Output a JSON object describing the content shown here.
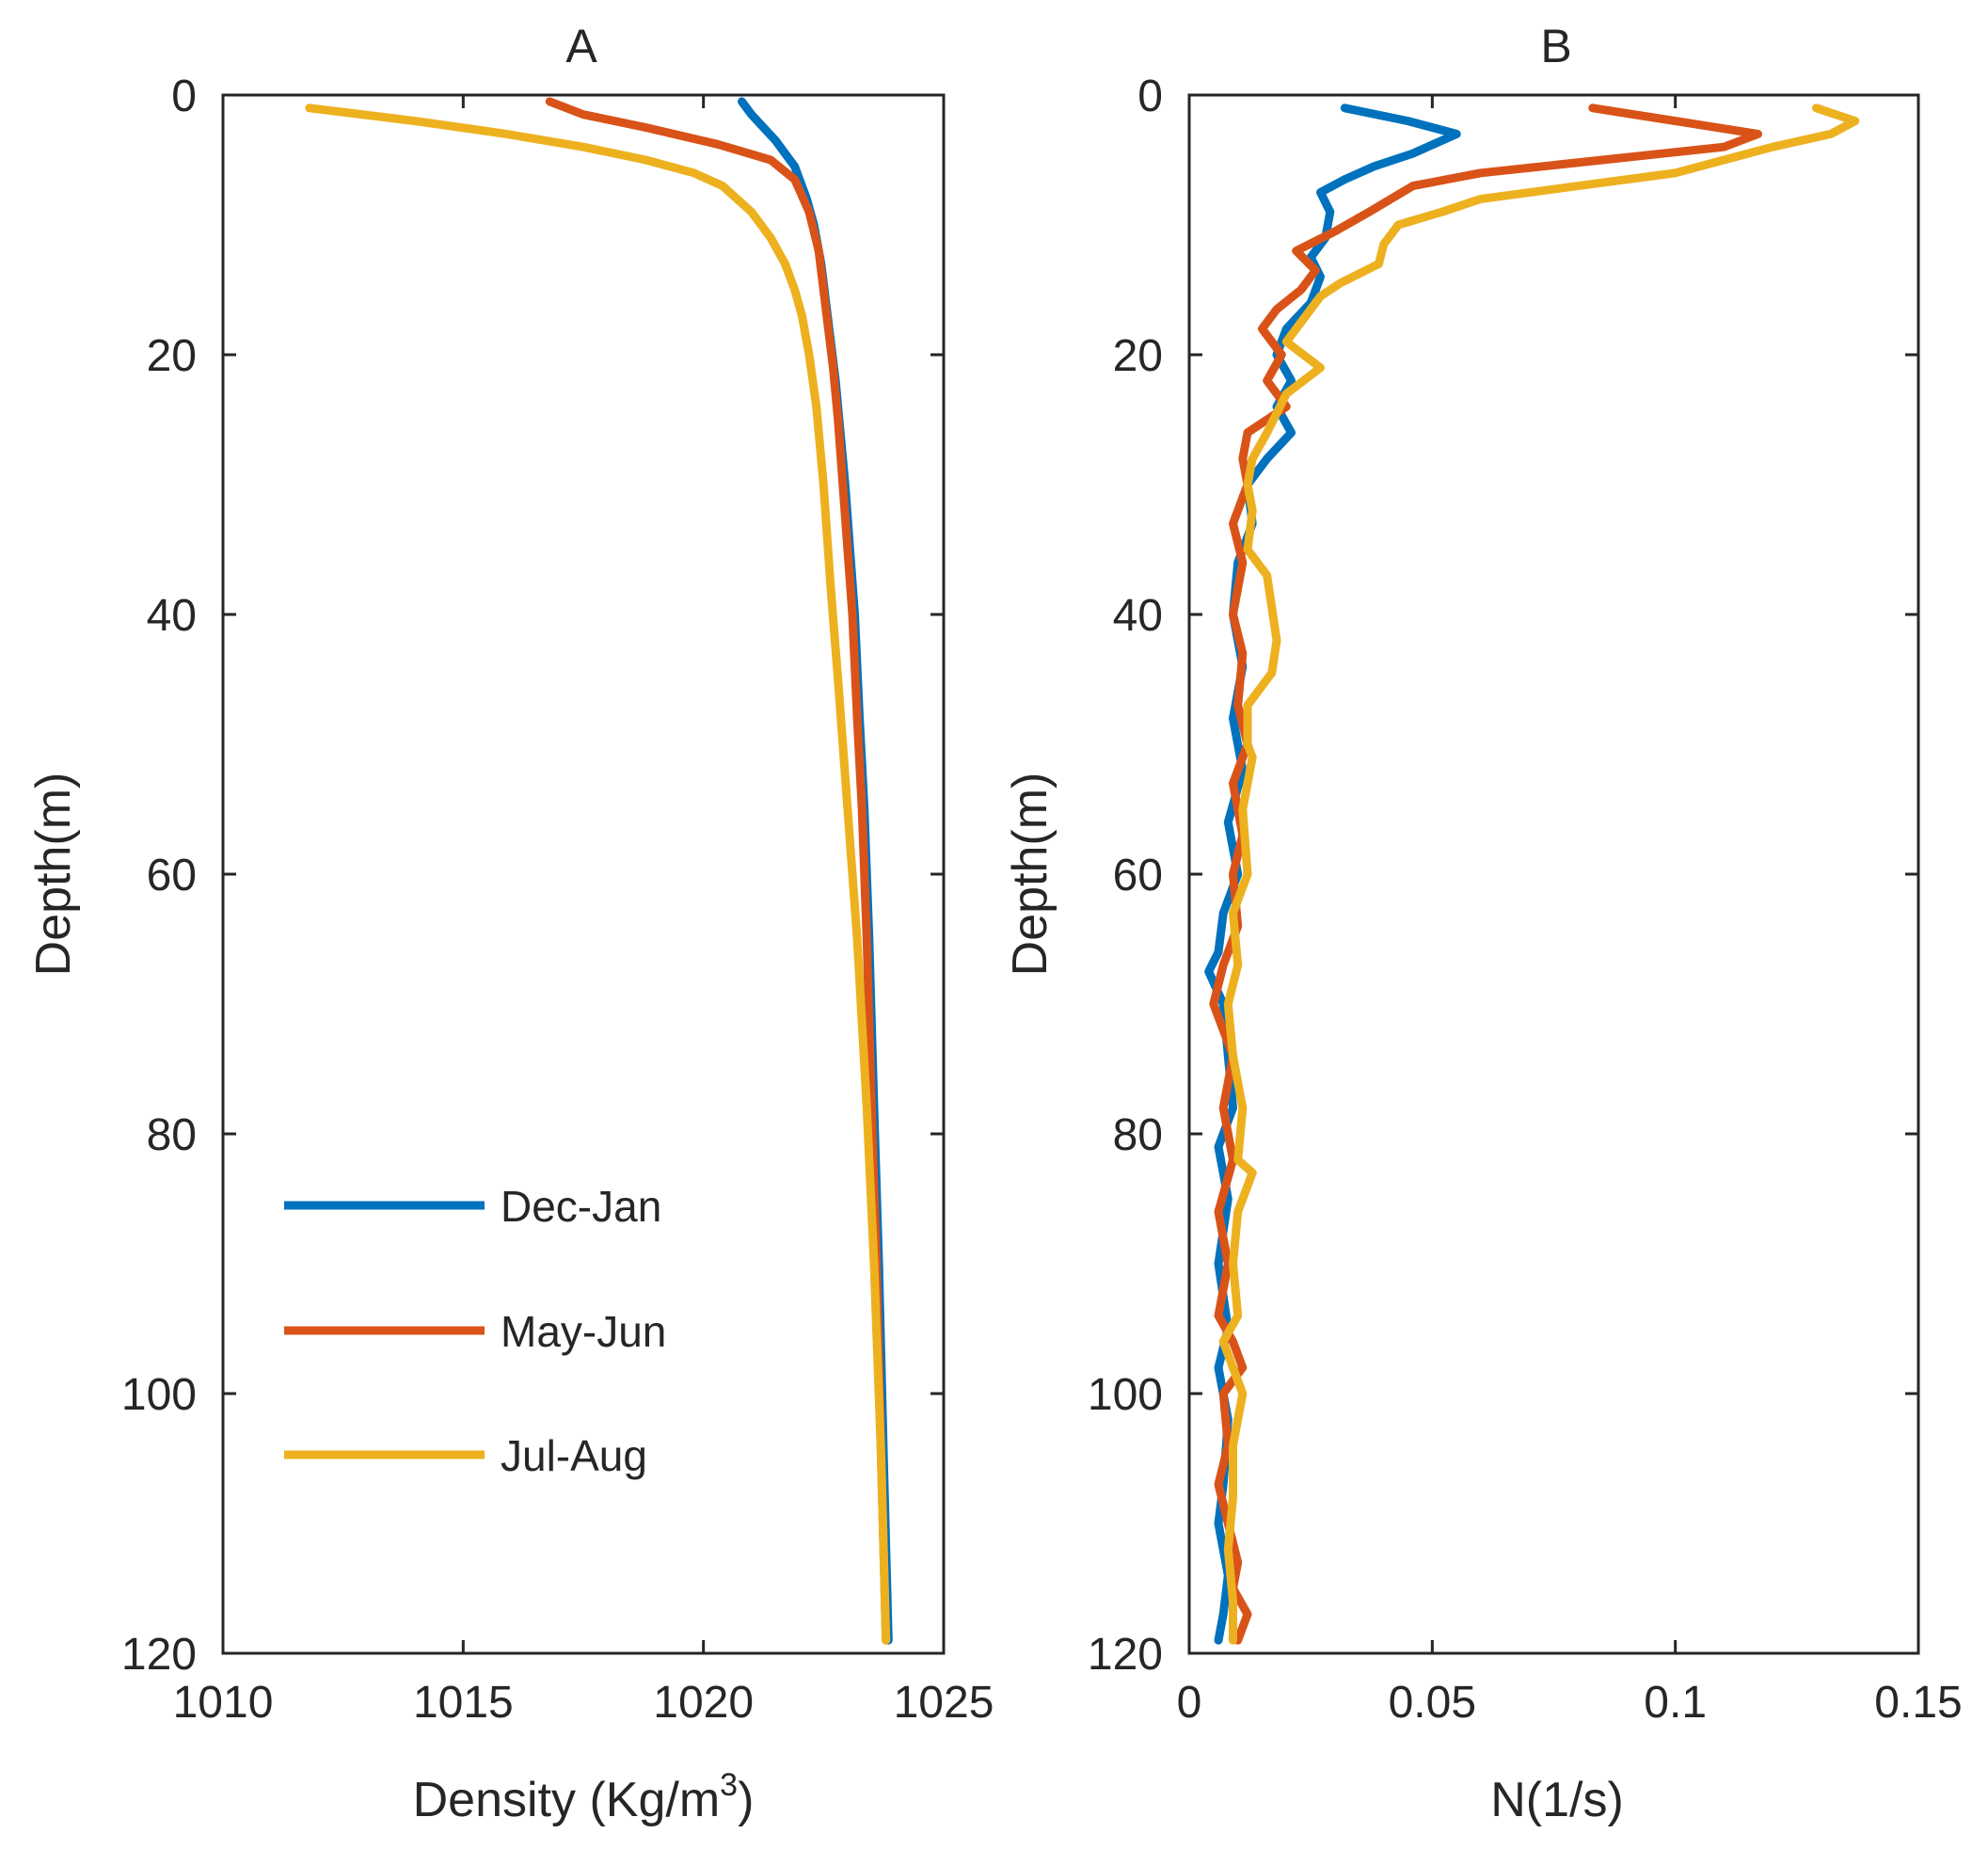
{
  "chart_data": [
    {
      "type": "line",
      "panel": "A",
      "title": "A",
      "xlabel": "Density (Kg/m",
      "xlabel_sup": "3",
      "xlabel_close": ")",
      "ylabel": "Depth(m)",
      "xlim": [
        1010,
        1025
      ],
      "ylim": [
        0,
        120
      ],
      "y_reversed": true,
      "xticks": [
        1010,
        1015,
        1020,
        1025
      ],
      "yticks": [
        0,
        20,
        40,
        60,
        80,
        100,
        120
      ],
      "legend": {
        "position": "bottom-left"
      },
      "series": [
        {
          "name": "Dec-Jan",
          "color": "#0072BD",
          "points": [
            [
              1020.8,
              0.5
            ],
            [
              1021.0,
              1.5
            ],
            [
              1021.5,
              3.5
            ],
            [
              1021.9,
              5.5
            ],
            [
              1022.15,
              8
            ],
            [
              1022.3,
              10
            ],
            [
              1022.45,
              13
            ],
            [
              1022.55,
              16
            ],
            [
              1022.65,
              19
            ],
            [
              1022.75,
              22
            ],
            [
              1022.85,
              26
            ],
            [
              1022.95,
              30
            ],
            [
              1023.05,
              35
            ],
            [
              1023.15,
              40
            ],
            [
              1023.25,
              48
            ],
            [
              1023.35,
              55
            ],
            [
              1023.45,
              65
            ],
            [
              1023.55,
              78
            ],
            [
              1023.65,
              90
            ],
            [
              1023.75,
              105
            ],
            [
              1023.85,
              119
            ]
          ]
        },
        {
          "name": "May-Jun",
          "color": "#D95319",
          "points": [
            [
              1016.8,
              0.5
            ],
            [
              1017.5,
              1.5
            ],
            [
              1018.8,
              2.5
            ],
            [
              1020.3,
              3.8
            ],
            [
              1021.4,
              5
            ],
            [
              1021.9,
              6.5
            ],
            [
              1022.2,
              9
            ],
            [
              1022.4,
              12
            ],
            [
              1022.5,
              15
            ],
            [
              1022.6,
              18
            ],
            [
              1022.7,
              21
            ],
            [
              1022.8,
              25
            ],
            [
              1022.9,
              30
            ],
            [
              1023.0,
              35
            ],
            [
              1023.1,
              40
            ],
            [
              1023.2,
              48
            ],
            [
              1023.3,
              55
            ],
            [
              1023.4,
              65
            ],
            [
              1023.5,
              78
            ],
            [
              1023.6,
              90
            ],
            [
              1023.7,
              105
            ],
            [
              1023.8,
              119
            ]
          ]
        },
        {
          "name": "Jul-Aug",
          "color": "#EDB120",
          "points": [
            [
              1011.8,
              1
            ],
            [
              1014.0,
              2
            ],
            [
              1015.9,
              3
            ],
            [
              1017.5,
              4
            ],
            [
              1018.8,
              5
            ],
            [
              1019.8,
              6
            ],
            [
              1020.4,
              7
            ],
            [
              1021.0,
              9
            ],
            [
              1021.4,
              11
            ],
            [
              1021.7,
              13
            ],
            [
              1021.9,
              15
            ],
            [
              1022.05,
              17
            ],
            [
              1022.2,
              20
            ],
            [
              1022.35,
              24
            ],
            [
              1022.5,
              30
            ],
            [
              1022.65,
              38
            ],
            [
              1022.8,
              45
            ],
            [
              1023.0,
              55
            ],
            [
              1023.2,
              65
            ],
            [
              1023.4,
              78
            ],
            [
              1023.55,
              90
            ],
            [
              1023.7,
              105
            ],
            [
              1023.8,
              119
            ]
          ]
        }
      ]
    },
    {
      "type": "line",
      "panel": "B",
      "title": "B",
      "xlabel": "N(1/s)",
      "ylabel": "Depth(m)",
      "xlim": [
        0,
        0.15
      ],
      "ylim": [
        0,
        120
      ],
      "y_reversed": true,
      "xticks": [
        0,
        0.05,
        0.1,
        0.15
      ],
      "xtick_labels": [
        "0",
        "0.05",
        "0.1",
        "0.15"
      ],
      "yticks": [
        0,
        20,
        40,
        60,
        80,
        100,
        120
      ],
      "series": [
        {
          "name": "Dec-Jan",
          "color": "#0072BD",
          "points": [
            [
              0.032,
              1
            ],
            [
              0.045,
              2
            ],
            [
              0.055,
              3
            ],
            [
              0.046,
              4.5
            ],
            [
              0.038,
              5.5
            ],
            [
              0.032,
              6.5
            ],
            [
              0.027,
              7.5
            ],
            [
              0.029,
              9
            ],
            [
              0.028,
              11
            ],
            [
              0.025,
              12.5
            ],
            [
              0.027,
              14
            ],
            [
              0.025,
              16
            ],
            [
              0.02,
              18
            ],
            [
              0.018,
              20
            ],
            [
              0.021,
              22
            ],
            [
              0.018,
              24
            ],
            [
              0.021,
              26
            ],
            [
              0.016,
              28
            ],
            [
              0.012,
              30
            ],
            [
              0.013,
              33
            ],
            [
              0.01,
              36
            ],
            [
              0.009,
              40
            ],
            [
              0.011,
              44
            ],
            [
              0.009,
              48
            ],
            [
              0.011,
              52
            ],
            [
              0.008,
              56
            ],
            [
              0.01,
              60
            ],
            [
              0.007,
              63
            ],
            [
              0.006,
              66
            ],
            [
              0.004,
              67.5
            ],
            [
              0.007,
              70
            ],
            [
              0.008,
              74
            ],
            [
              0.009,
              78
            ],
            [
              0.006,
              81
            ],
            [
              0.008,
              85
            ],
            [
              0.006,
              90
            ],
            [
              0.008,
              95
            ],
            [
              0.006,
              98
            ],
            [
              0.008,
              102
            ],
            [
              0.007,
              107
            ],
            [
              0.006,
              110
            ],
            [
              0.008,
              114
            ],
            [
              0.007,
              117
            ],
            [
              0.006,
              119
            ]
          ]
        },
        {
          "name": "May-Jun",
          "color": "#D95319",
          "points": [
            [
              0.083,
              1
            ],
            [
              0.1,
              2
            ],
            [
              0.117,
              3
            ],
            [
              0.11,
              4
            ],
            [
              0.085,
              5
            ],
            [
              0.06,
              6
            ],
            [
              0.046,
              7
            ],
            [
              0.037,
              9
            ],
            [
              0.03,
              10.5
            ],
            [
              0.022,
              12
            ],
            [
              0.026,
              13.5
            ],
            [
              0.023,
              15
            ],
            [
              0.018,
              16.5
            ],
            [
              0.015,
              18
            ],
            [
              0.019,
              20
            ],
            [
              0.016,
              22
            ],
            [
              0.02,
              24
            ],
            [
              0.012,
              26
            ],
            [
              0.011,
              28
            ],
            [
              0.012,
              30
            ],
            [
              0.009,
              33
            ],
            [
              0.011,
              36
            ],
            [
              0.009,
              40
            ],
            [
              0.011,
              43
            ],
            [
              0.01,
              47
            ],
            [
              0.012,
              50
            ],
            [
              0.009,
              53
            ],
            [
              0.011,
              57
            ],
            [
              0.009,
              60
            ],
            [
              0.01,
              64
            ],
            [
              0.007,
              67
            ],
            [
              0.005,
              70
            ],
            [
              0.009,
              74
            ],
            [
              0.007,
              78
            ],
            [
              0.009,
              82
            ],
            [
              0.006,
              86
            ],
            [
              0.008,
              90
            ],
            [
              0.006,
              94
            ],
            [
              0.009,
              96
            ],
            [
              0.011,
              98
            ],
            [
              0.007,
              100
            ],
            [
              0.008,
              104
            ],
            [
              0.006,
              107
            ],
            [
              0.008,
              110
            ],
            [
              0.01,
              113
            ],
            [
              0.009,
              115
            ],
            [
              0.012,
              117
            ],
            [
              0.01,
              119
            ]
          ]
        },
        {
          "name": "Jul-Aug",
          "color": "#EDB120",
          "points": [
            [
              0.129,
              1
            ],
            [
              0.137,
              2
            ],
            [
              0.132,
              3
            ],
            [
              0.12,
              4
            ],
            [
              0.11,
              5
            ],
            [
              0.1,
              6
            ],
            [
              0.08,
              7
            ],
            [
              0.06,
              8
            ],
            [
              0.052,
              9
            ],
            [
              0.043,
              10
            ],
            [
              0.04,
              11.5
            ],
            [
              0.039,
              13
            ],
            [
              0.031,
              14.5
            ],
            [
              0.027,
              15.5
            ],
            [
              0.024,
              17
            ],
            [
              0.02,
              19
            ],
            [
              0.027,
              21
            ],
            [
              0.02,
              23
            ],
            [
              0.016,
              26
            ],
            [
              0.013,
              28
            ],
            [
              0.012,
              30
            ],
            [
              0.013,
              32
            ],
            [
              0.012,
              35
            ],
            [
              0.016,
              37
            ],
            [
              0.018,
              42
            ],
            [
              0.017,
              44.5
            ],
            [
              0.012,
              47
            ],
            [
              0.012,
              50
            ],
            [
              0.013,
              51
            ],
            [
              0.011,
              55
            ],
            [
              0.012,
              60
            ],
            [
              0.009,
              63
            ],
            [
              0.01,
              67
            ],
            [
              0.008,
              70
            ],
            [
              0.009,
              74
            ],
            [
              0.011,
              78
            ],
            [
              0.01,
              82
            ],
            [
              0.013,
              83
            ],
            [
              0.01,
              86
            ],
            [
              0.009,
              90
            ],
            [
              0.01,
              94
            ],
            [
              0.007,
              96
            ],
            [
              0.011,
              100
            ],
            [
              0.009,
              104
            ],
            [
              0.009,
              108
            ],
            [
              0.008,
              112
            ],
            [
              0.009,
              116
            ],
            [
              0.009,
              119
            ]
          ]
        }
      ]
    }
  ]
}
